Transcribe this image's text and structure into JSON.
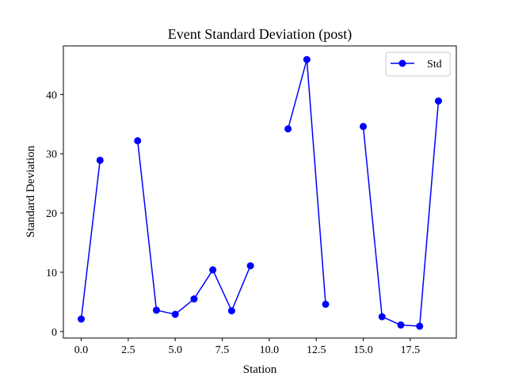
{
  "chart_data": {
    "type": "line",
    "title": "Event Standard Deviation (post)",
    "xlabel": "Station",
    "ylabel": "Standard Deviation",
    "xlim": [
      -0.95,
      19.95
    ],
    "ylim": [
      -1.1,
      48.2
    ],
    "xticks": [
      0.0,
      2.5,
      5.0,
      7.5,
      10.0,
      12.5,
      15.0,
      17.5
    ],
    "xtick_labels": [
      "0.0",
      "2.5",
      "5.0",
      "7.5",
      "10.0",
      "12.5",
      "15.0",
      "17.5"
    ],
    "yticks": [
      0,
      10,
      20,
      30,
      40
    ],
    "ytick_labels": [
      "0",
      "10",
      "20",
      "30",
      "40"
    ],
    "grid": false,
    "legend_position": "top-right",
    "series": [
      {
        "name": "Std",
        "color": "#0000ff",
        "marker": "circle",
        "x": [
          0,
          1,
          2,
          3,
          4,
          5,
          6,
          7,
          8,
          9,
          10,
          11,
          12,
          13,
          14,
          15,
          16,
          17,
          18,
          19
        ],
        "y": [
          2.1,
          28.9,
          null,
          32.2,
          3.6,
          2.9,
          5.5,
          10.4,
          3.5,
          11.1,
          null,
          34.2,
          45.9,
          4.6,
          null,
          34.6,
          2.5,
          1.1,
          0.9,
          38.9
        ]
      }
    ]
  }
}
